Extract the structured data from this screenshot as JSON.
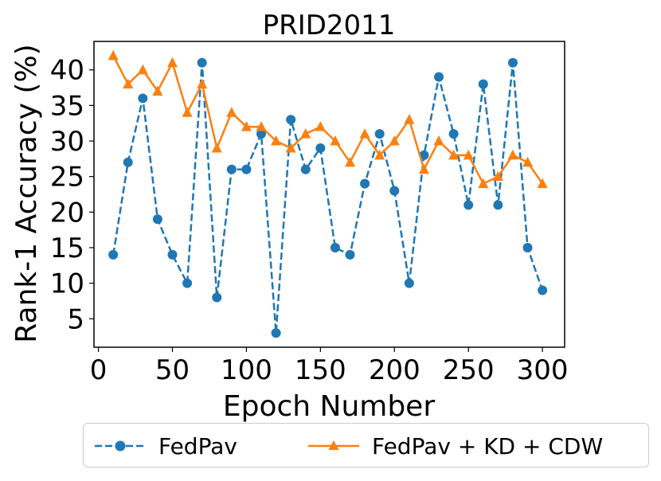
{
  "chart_data": {
    "type": "line",
    "title": "PRID2011",
    "xlabel": "Epoch Number",
    "ylabel": "Rank-1 Accuracy (%)",
    "xlim": [
      -3,
      315
    ],
    "ylim": [
      1,
      44
    ],
    "xticks": [
      0,
      50,
      100,
      150,
      200,
      250,
      300
    ],
    "yticks": [
      5,
      10,
      15,
      20,
      25,
      30,
      35,
      40
    ],
    "x": [
      10,
      20,
      30,
      40,
      50,
      60,
      70,
      80,
      90,
      100,
      110,
      120,
      130,
      140,
      150,
      160,
      170,
      180,
      190,
      200,
      210,
      220,
      230,
      240,
      250,
      260,
      270,
      280,
      290,
      300
    ],
    "series": [
      {
        "name": "FedPav",
        "color": "#1f77b4",
        "marker": "circle",
        "linestyle": "dashed",
        "values": [
          14,
          27,
          36,
          19,
          14,
          10,
          41,
          8,
          26,
          26,
          31,
          3,
          33,
          26,
          29,
          15,
          14,
          24,
          31,
          23,
          10,
          28,
          39,
          31,
          21,
          38,
          21,
          41,
          15,
          9
        ]
      },
      {
        "name": "FedPav + KD + CDW",
        "color": "#ff7f0e",
        "marker": "triangle",
        "linestyle": "solid",
        "values": [
          42,
          38,
          40,
          37,
          41,
          34,
          38,
          29,
          34,
          32,
          32,
          30,
          29,
          31,
          32,
          30,
          27,
          31,
          28,
          30,
          33,
          26,
          30,
          28,
          28,
          24,
          25,
          28,
          27,
          24
        ]
      }
    ],
    "legend_position": "below"
  }
}
